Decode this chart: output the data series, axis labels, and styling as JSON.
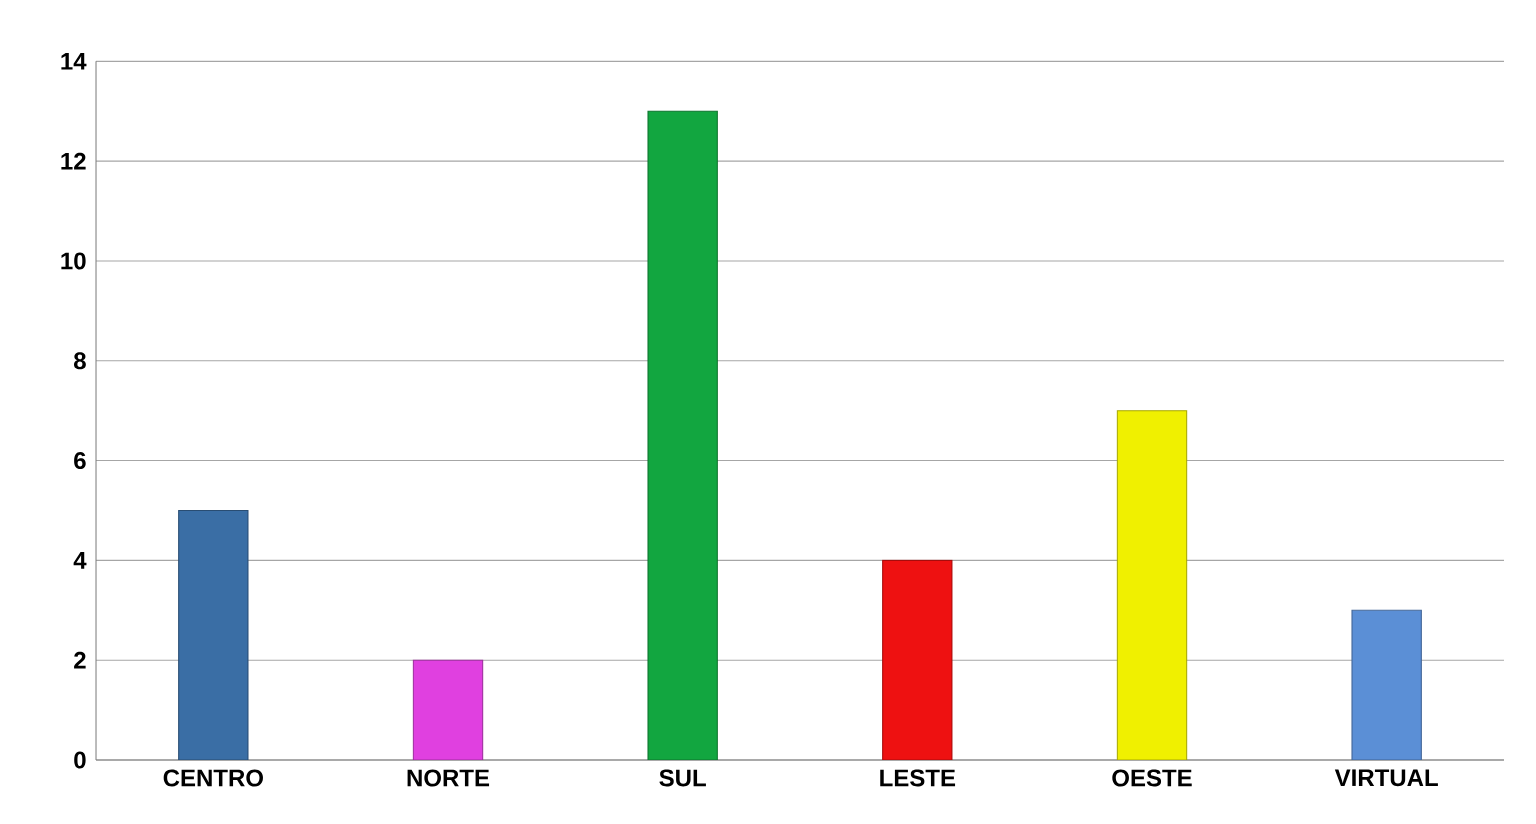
{
  "chart_data": {
    "type": "bar",
    "categories": [
      "CENTRO",
      "NORTE",
      "SUL",
      "LESTE",
      "OESTE",
      "VIRTUAL"
    ],
    "values": [
      5,
      2,
      13,
      4,
      7,
      3
    ],
    "colors": [
      "#3a6ea5",
      "#e040e0",
      "#12a640",
      "#ee1111",
      "#f0f000",
      "#5b8fd6"
    ],
    "ylim": [
      0,
      14
    ],
    "yticks": [
      0,
      2,
      4,
      6,
      8,
      10,
      12,
      14
    ],
    "grid": "y"
  }
}
